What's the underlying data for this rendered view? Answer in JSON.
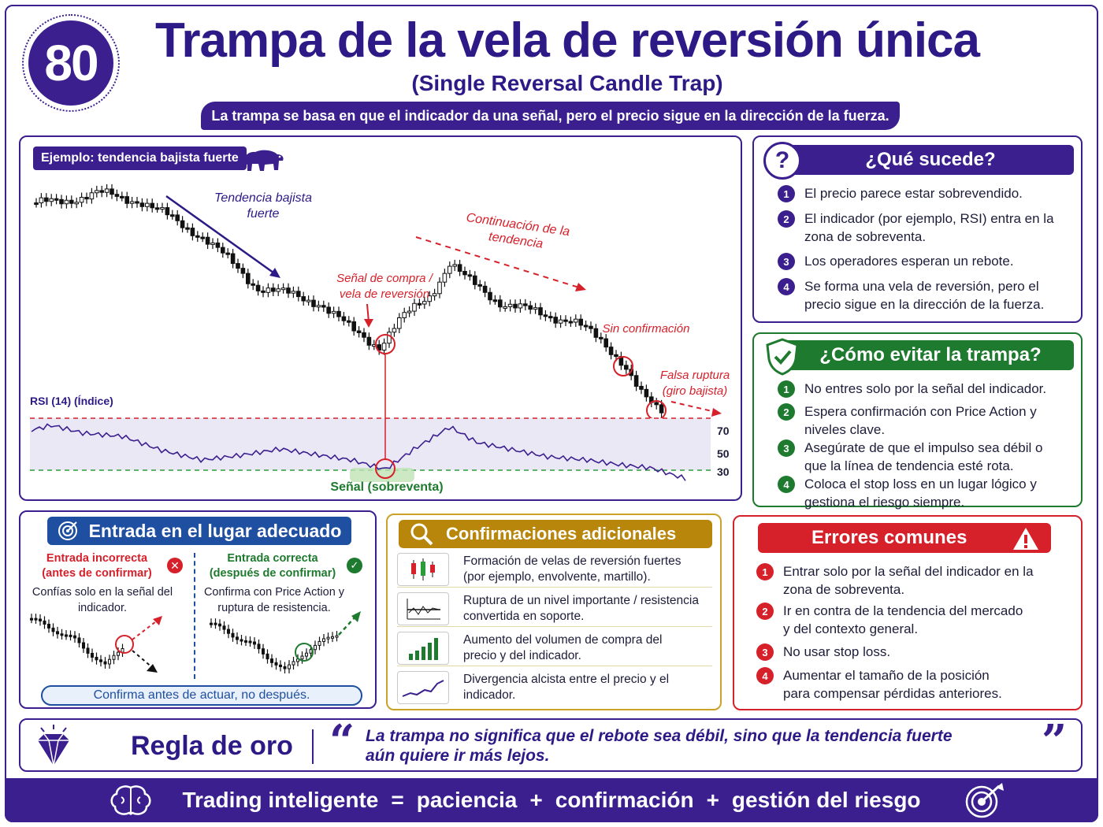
{
  "header": {
    "number": "80",
    "title": "Trampa de la vela de reversión única",
    "subtitle": "(Single Reversal Candle Trap)",
    "banner": "La trampa se basa en que el indicador da una señal, pero el precio sigue en la dirección de la fuerza."
  },
  "example": {
    "tag": "Ejemplo: tendencia bajista fuerte",
    "annotations": {
      "strong_trend": "Tendencia bajista fuerte",
      "buy_signal": "Señal de compra / vela de reversión",
      "continuation": "Continuación de la tendencia",
      "no_confirmation": "Sin confirmación",
      "false_break": "Falsa ruptura (giro bajista)"
    },
    "rsi_label": "RSI (14) (Índice)",
    "rsi_levels": [
      "70",
      "50",
      "30"
    ],
    "signal_label": "Señal (sobreventa)"
  },
  "what_happens": {
    "title": "¿Qué sucede?",
    "items": [
      {
        "n": "1",
        "text": "El precio parece estar sobrevendido."
      },
      {
        "n": "2",
        "text": "El indicador (por ejemplo, RSI) entra en la zona de sobreventa."
      },
      {
        "n": "3",
        "text": "Los operadores esperan un rebote."
      },
      {
        "n": "4",
        "text": "Se forma una vela de reversión, pero el precio sigue en la dirección de la fuerza."
      }
    ]
  },
  "avoid": {
    "title": "¿Cómo evitar la trampa?",
    "items": [
      {
        "n": "1",
        "text": "No entres solo por la señal del indicador."
      },
      {
        "n": "2",
        "text": "Espera confirmación con Price Action y niveles clave."
      },
      {
        "n": "3",
        "text": "Asegúrate de que el impulso sea débil o que la línea de tendencia esté rota."
      },
      {
        "n": "4",
        "text": "Coloca el stop loss en un lugar lógico y gestiona el riesgo siempre."
      }
    ]
  },
  "entry": {
    "title": "Entrada en el lugar adecuado",
    "wrong_title": "Entrada incorrecta (antes de confirmar)",
    "wrong_text": "Confías solo en la señal del indicador.",
    "right_title": "Entrada correcta (después de confirmar)",
    "right_text": "Confirma con Price Action y ruptura de resistencia.",
    "footer": "Confirma antes de actuar, no después."
  },
  "confirmations": {
    "title": "Confirmaciones adicionales",
    "items": [
      {
        "icon": "candles-icon",
        "text": "Formación de velas de reversión fuertes (por ejemplo, envolvente, martillo)."
      },
      {
        "icon": "breakout-icon",
        "text": "Ruptura de un nivel importante / resistencia convertida en soporte."
      },
      {
        "icon": "volume-icon",
        "text": "Aumento del volumen de compra del precio y del indicador."
      },
      {
        "icon": "divergence-icon",
        "text": "Divergencia alcista entre el precio y el indicador."
      }
    ]
  },
  "errors": {
    "title": "Errores comunes",
    "items": [
      {
        "n": "1",
        "text": "Entrar solo por la señal del indicador en la zona de sobreventa."
      },
      {
        "n": "2",
        "text": "Ir en contra de la tendencia del mercado y del contexto general."
      },
      {
        "n": "3",
        "text": "No usar stop loss."
      },
      {
        "n": "4",
        "text": "Aumentar el tamaño de la posición para compensar pérdidas anteriores."
      }
    ]
  },
  "rule": {
    "title": "Regla de oro",
    "open_quote": "“",
    "close_quote": "”",
    "quote": "La trampa no significa que el rebote sea débil, sino que la tendencia fuerte aún quiere ir más lejos."
  },
  "footer": {
    "w1": "Trading inteligente",
    "eq": "=",
    "w2": "paciencia",
    "plus1": "+",
    "w3": "confirmación",
    "plus2": "+",
    "w4": "gestión del riesgo"
  },
  "colors": {
    "primary": "#3b1f8f",
    "green": "#1e7a2e",
    "gold": "#b8860b",
    "red": "#d6202a"
  }
}
